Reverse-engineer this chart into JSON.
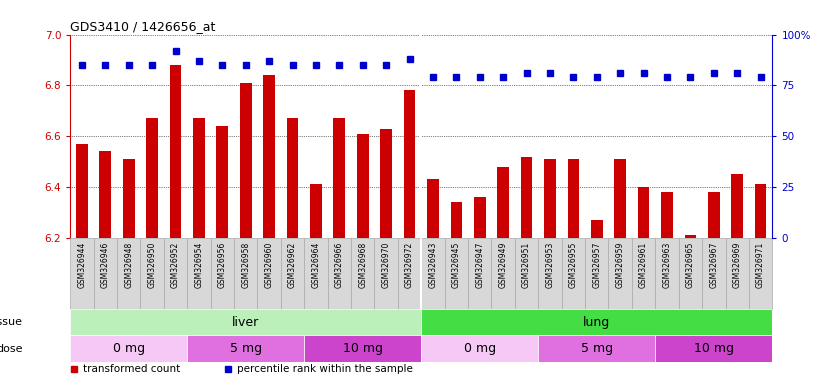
{
  "title": "GDS3410 / 1426656_at",
  "categories": [
    "GSM326944",
    "GSM326946",
    "GSM326948",
    "GSM326950",
    "GSM326952",
    "GSM326954",
    "GSM326956",
    "GSM326958",
    "GSM326960",
    "GSM326962",
    "GSM326964",
    "GSM326966",
    "GSM326968",
    "GSM326970",
    "GSM326972",
    "GSM326943",
    "GSM326945",
    "GSM326947",
    "GSM326949",
    "GSM326951",
    "GSM326953",
    "GSM326955",
    "GSM326957",
    "GSM326959",
    "GSM326961",
    "GSM326963",
    "GSM326965",
    "GSM326967",
    "GSM326969",
    "GSM326971"
  ],
  "bar_values": [
    6.57,
    6.54,
    6.51,
    6.67,
    6.88,
    6.67,
    6.64,
    6.81,
    6.84,
    6.67,
    6.41,
    6.67,
    6.61,
    6.63,
    6.78,
    6.43,
    6.34,
    6.36,
    6.48,
    6.52,
    6.51,
    6.51,
    6.27,
    6.51,
    6.4,
    6.38,
    6.21,
    6.38,
    6.45,
    6.41
  ],
  "percentile_values": [
    85,
    85,
    85,
    85,
    92,
    87,
    85,
    85,
    87,
    85,
    85,
    85,
    85,
    85,
    88,
    79,
    79,
    79,
    79,
    81,
    81,
    79,
    79,
    81,
    81,
    79,
    79,
    81,
    81,
    79
  ],
  "bar_color": "#cc0000",
  "dot_color": "#0000cc",
  "ylim_left": [
    6.2,
    7.0
  ],
  "ylim_right": [
    0,
    100
  ],
  "yticks_left": [
    6.2,
    6.4,
    6.6,
    6.8,
    7.0
  ],
  "yticks_right": [
    0,
    25,
    50,
    75,
    100
  ],
  "yticklabels_right": [
    "0",
    "25",
    "50",
    "75",
    "100%"
  ],
  "tissue_groups": [
    {
      "label": "liver",
      "start": 0,
      "end": 15,
      "color": "#bbf0bb"
    },
    {
      "label": "lung",
      "start": 15,
      "end": 30,
      "color": "#44dd44"
    }
  ],
  "dose_groups": [
    {
      "label": "0 mg",
      "start": 0,
      "end": 5,
      "color": "#f5c8f5"
    },
    {
      "label": "5 mg",
      "start": 5,
      "end": 10,
      "color": "#e070e0"
    },
    {
      "label": "10 mg",
      "start": 10,
      "end": 15,
      "color": "#cc44cc"
    },
    {
      "label": "0 mg",
      "start": 15,
      "end": 20,
      "color": "#f5c8f5"
    },
    {
      "label": "5 mg",
      "start": 20,
      "end": 25,
      "color": "#e070e0"
    },
    {
      "label": "10 mg",
      "start": 25,
      "end": 30,
      "color": "#cc44cc"
    }
  ],
  "legend_items": [
    {
      "label": "transformed count",
      "color": "#cc0000",
      "marker": "s"
    },
    {
      "label": "percentile rank within the sample",
      "color": "#0000cc",
      "marker": "s"
    }
  ],
  "tissue_label": "tissue",
  "dose_label": "dose",
  "chart_bg": "#ffffff",
  "xticklabel_bg": "#d8d8d8",
  "xticklabel_border": "#aaaaaa"
}
